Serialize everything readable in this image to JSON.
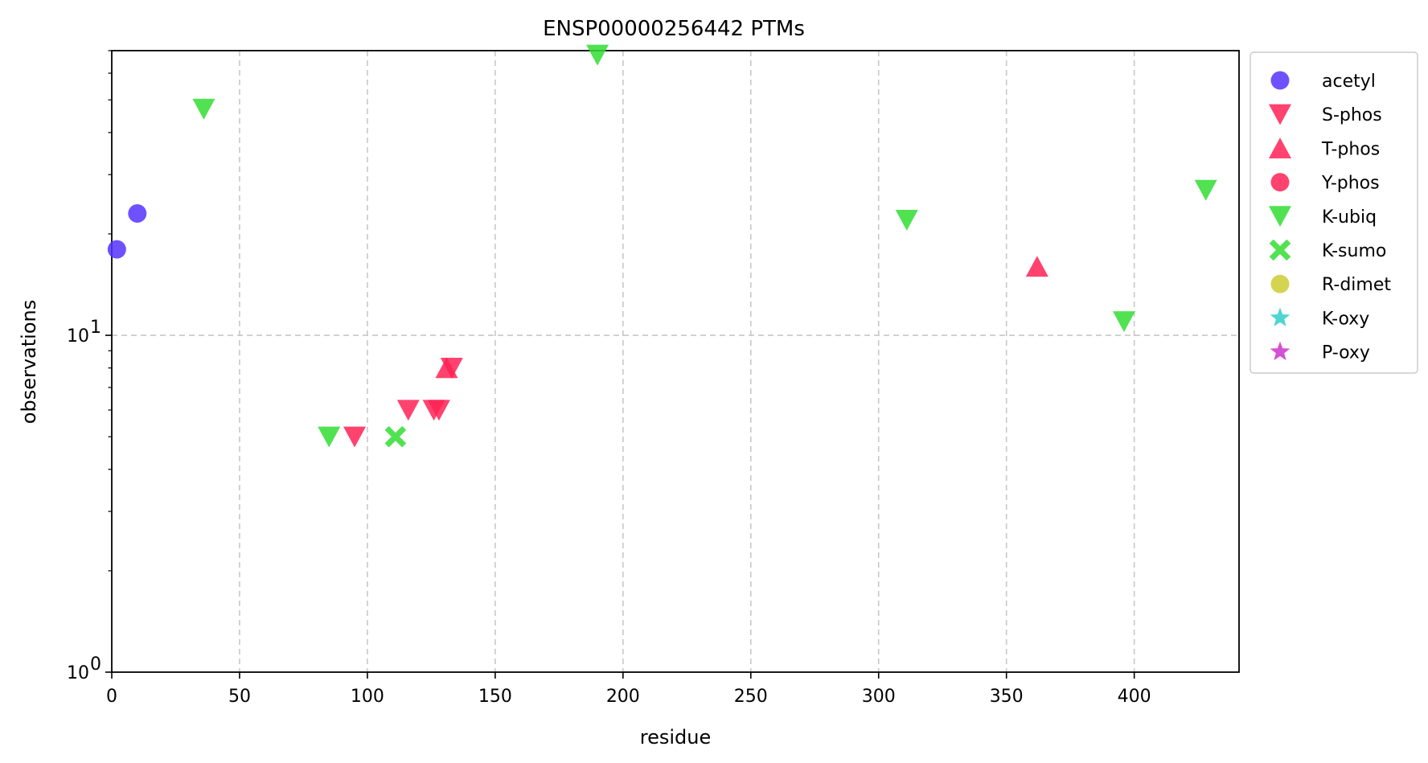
{
  "chart_data": {
    "type": "scatter",
    "title": "ENSP00000256442 PTMs",
    "xlabel": "residue",
    "ylabel": "observations",
    "xlim": [
      0,
      441
    ],
    "ylim": [
      1,
      70
    ],
    "yscale": "log",
    "grid": true,
    "legend_position": "outside-right-top",
    "x_ticks": [
      0,
      50,
      100,
      150,
      200,
      250,
      300,
      350,
      400
    ],
    "x_tick_labels": [
      "0",
      "50",
      "100",
      "150",
      "200",
      "250",
      "300",
      "350",
      "400"
    ],
    "y_ticks": [
      1,
      10
    ],
    "y_tick_labels": [
      {
        "base": "10",
        "exp": "0"
      },
      {
        "base": "10",
        "exp": "1"
      }
    ],
    "series": [
      {
        "name": "acetyl",
        "marker": "circle",
        "color": "#5533ff",
        "points": [
          [
            2,
            18
          ],
          [
            10,
            23
          ]
        ]
      },
      {
        "name": "S-phos",
        "marker": "triangle-down",
        "color": "#ff2255",
        "points": [
          [
            95,
            5
          ],
          [
            116,
            6
          ],
          [
            126,
            6
          ],
          [
            128,
            6
          ],
          [
            133,
            8
          ]
        ]
      },
      {
        "name": "T-phos",
        "marker": "triangle-up",
        "color": "#ff2255",
        "points": [
          [
            131,
            8
          ],
          [
            362,
            16
          ]
        ]
      },
      {
        "name": "Y-phos",
        "marker": "circle",
        "color": "#ff2255",
        "points": []
      },
      {
        "name": "K-ubiq",
        "marker": "triangle-down",
        "color": "#33dd33",
        "points": [
          [
            36,
            47
          ],
          [
            85,
            5
          ],
          [
            190,
            68
          ],
          [
            311,
            22
          ],
          [
            396,
            11
          ],
          [
            428,
            27
          ]
        ]
      },
      {
        "name": "K-sumo",
        "marker": "x",
        "color": "#33dd33",
        "points": [
          [
            111,
            5
          ]
        ]
      },
      {
        "name": "R-dimet",
        "marker": "circle",
        "color": "#cccc33",
        "points": []
      },
      {
        "name": "K-oxy",
        "marker": "star",
        "color": "#33cccc",
        "points": []
      },
      {
        "name": "P-oxy",
        "marker": "star",
        "color": "#cc33cc",
        "points": []
      }
    ]
  }
}
